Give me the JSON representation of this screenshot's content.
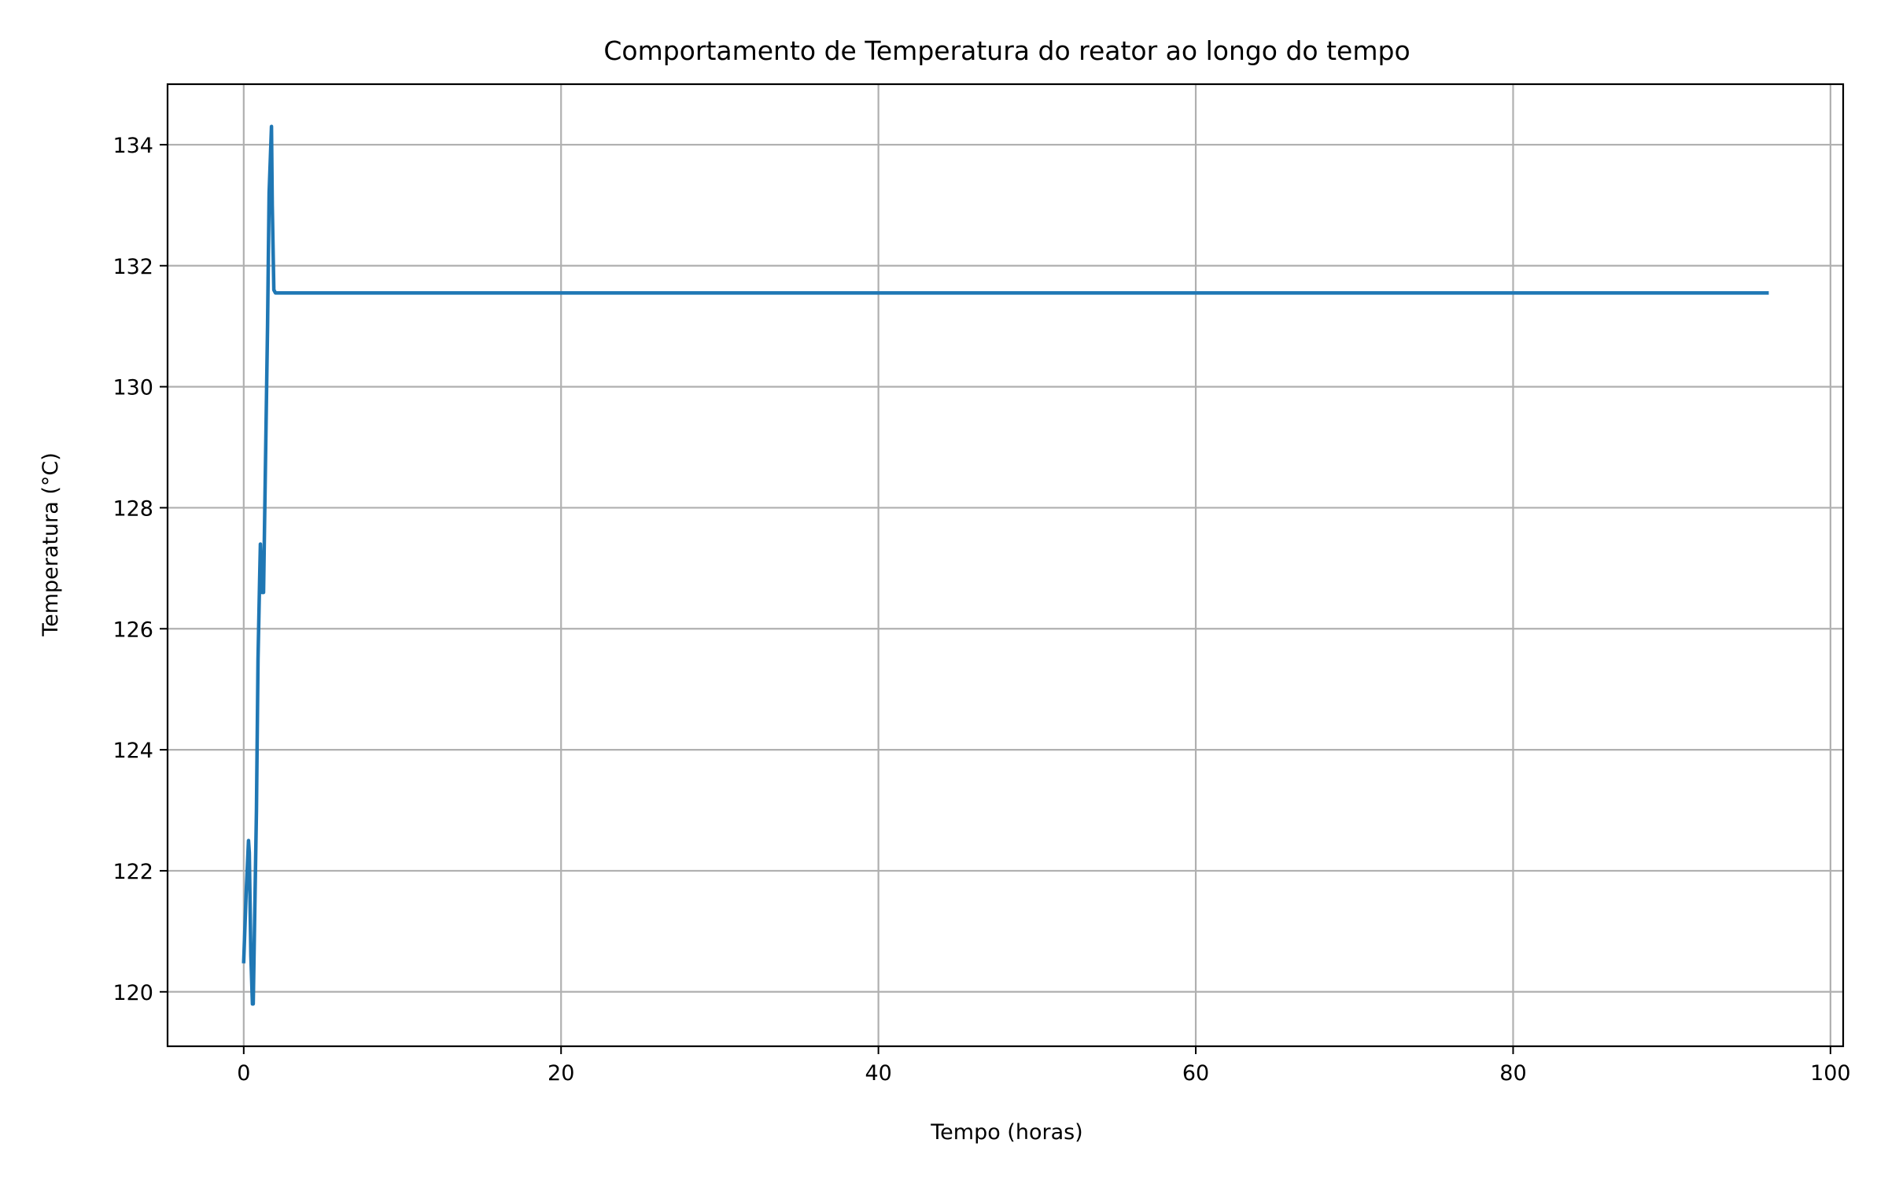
{
  "chart_data": {
    "type": "line",
    "title": "Comportamento de Temperatura do reator ao longo do tempo",
    "xlabel": "Tempo (horas)",
    "ylabel": "Temperatura (°C)",
    "xlim": [
      -4.8,
      100.8
    ],
    "ylim": [
      119.1,
      135.0
    ],
    "xticks": [
      0,
      20,
      40,
      60,
      80,
      100
    ],
    "yticks": [
      120,
      122,
      124,
      126,
      128,
      130,
      132,
      134
    ],
    "grid": true,
    "legend": "none",
    "series": [
      {
        "color": "#1f77b4",
        "x": [
          0,
          0.15,
          0.3,
          0.35,
          0.45,
          0.55,
          0.6,
          0.8,
          0.9,
          1.0,
          1.05,
          1.15,
          1.25,
          1.5,
          1.6,
          1.75,
          1.8,
          1.9,
          2.0,
          2.2,
          5,
          10,
          20,
          40,
          60,
          80,
          96
        ],
        "y": [
          120.5,
          121.6,
          122.5,
          122.3,
          120.6,
          119.8,
          119.8,
          123.0,
          125.5,
          126.8,
          127.4,
          126.6,
          126.6,
          131.0,
          133.2,
          134.3,
          133.0,
          131.6,
          131.55,
          131.55,
          131.55,
          131.55,
          131.55,
          131.55,
          131.55,
          131.55,
          131.55
        ]
      }
    ]
  }
}
